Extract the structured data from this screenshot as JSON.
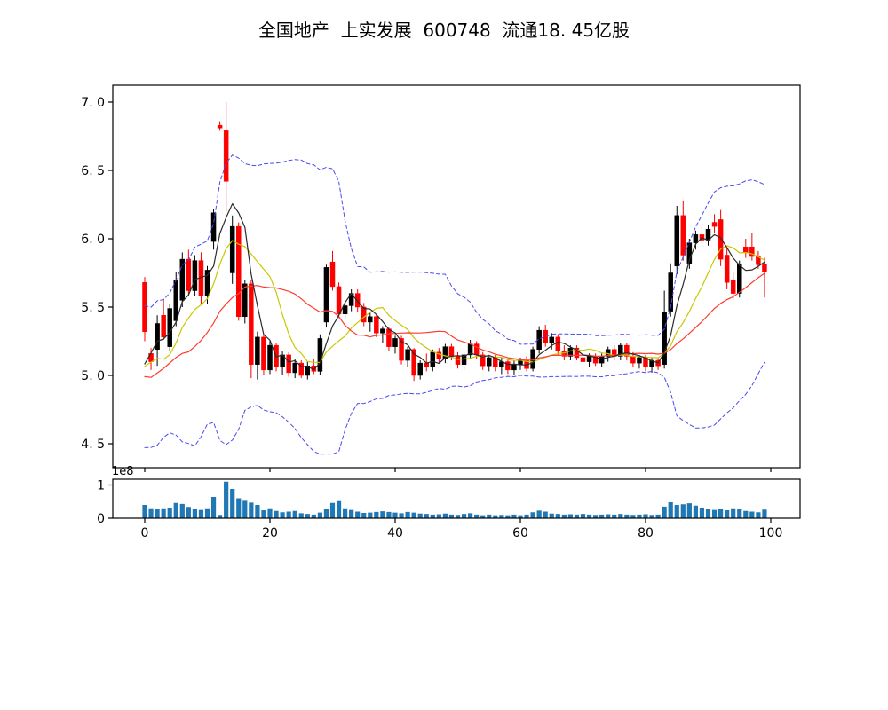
{
  "header": {
    "title": "全国地产  上实发展  600748  流通18. 45亿股"
  },
  "chart_data": {
    "type": "candlestick",
    "title": "全国地产  上实发展  600748  流通18. 45亿股",
    "xlabel": "",
    "ylabel": "",
    "legend": "none",
    "grid": false,
    "x_range_sessions": [
      0,
      99
    ],
    "price_axis": {
      "tick_values": [
        7.0,
        6.5,
        6.0,
        5.5,
        5.0,
        4.5
      ],
      "tick_labels": [
        "7. 0",
        "6. 5",
        "6. 0",
        "5. 5",
        "5. 0",
        "4. 5"
      ]
    },
    "x_axis": {
      "tick_values": [
        0,
        20,
        40,
        60,
        80,
        100
      ],
      "tick_labels": [
        "0",
        "20",
        "40",
        "60",
        "80",
        "100"
      ]
    },
    "volume_axis": {
      "tick_values": [
        1,
        0
      ],
      "tick_labels": [
        "1",
        "0"
      ],
      "offset_label": "1e8"
    },
    "overlays": {
      "ma_fast_period": 5,
      "ma_mid_period": 10,
      "ma_slow_period": 20,
      "bollinger_period": 20,
      "bollinger_k": 2
    },
    "colors": {
      "up": "#000000",
      "down": "#fe0000",
      "ma_fast": "#2b2b2b",
      "ma_mid": "#c8c800",
      "ma_slow": "#ff3b30",
      "bollinger": "#4a4af0",
      "volume": "#1f77b4",
      "axis": "#000000"
    },
    "candles_ohlc": [
      [
        5.68,
        5.72,
        5.25,
        5.32
      ],
      [
        5.16,
        5.2,
        5.04,
        5.1
      ],
      [
        5.19,
        5.44,
        5.07,
        5.38
      ],
      [
        5.44,
        5.56,
        5.26,
        5.28
      ],
      [
        5.21,
        5.52,
        5.18,
        5.49
      ],
      [
        5.4,
        5.76,
        5.36,
        5.7
      ],
      [
        5.55,
        5.9,
        5.5,
        5.85
      ],
      [
        5.85,
        5.92,
        5.58,
        5.62
      ],
      [
        5.62,
        5.88,
        5.58,
        5.84
      ],
      [
        5.84,
        5.9,
        5.52,
        5.58
      ],
      [
        5.58,
        5.8,
        5.52,
        5.77
      ],
      [
        5.98,
        6.22,
        5.92,
        6.19
      ],
      [
        6.83,
        6.86,
        6.79,
        6.81
      ],
      [
        6.79,
        7.0,
        6.2,
        6.42
      ],
      [
        5.75,
        6.17,
        5.67,
        6.09
      ],
      [
        6.09,
        6.12,
        5.4,
        5.43
      ],
      [
        5.43,
        5.7,
        5.38,
        5.67
      ],
      [
        5.67,
        5.7,
        4.98,
        5.08
      ],
      [
        5.08,
        5.32,
        4.97,
        5.28
      ],
      [
        5.28,
        5.3,
        5.0,
        5.04
      ],
      [
        5.04,
        5.26,
        5.01,
        5.22
      ],
      [
        5.22,
        5.24,
        5.03,
        5.06
      ],
      [
        5.06,
        5.18,
        5.0,
        5.15
      ],
      [
        5.15,
        5.17,
        4.99,
        5.02
      ],
      [
        5.02,
        5.12,
        4.98,
        5.09
      ],
      [
        5.09,
        5.11,
        4.98,
        5.0
      ],
      [
        5.0,
        5.1,
        4.97,
        5.07
      ],
      [
        5.07,
        5.12,
        5.01,
        5.03
      ],
      [
        5.03,
        5.3,
        5.0,
        5.27
      ],
      [
        5.39,
        5.81,
        5.35,
        5.79
      ],
      [
        5.83,
        5.91,
        5.62,
        5.65
      ],
      [
        5.65,
        5.68,
        5.42,
        5.45
      ],
      [
        5.45,
        5.54,
        5.42,
        5.51
      ],
      [
        5.51,
        5.63,
        5.47,
        5.6
      ],
      [
        5.6,
        5.63,
        5.46,
        5.5
      ],
      [
        5.5,
        5.53,
        5.36,
        5.39
      ],
      [
        5.39,
        5.46,
        5.32,
        5.43
      ],
      [
        5.43,
        5.45,
        5.28,
        5.31
      ],
      [
        5.31,
        5.36,
        5.24,
        5.34
      ],
      [
        5.34,
        5.35,
        5.18,
        5.21
      ],
      [
        5.21,
        5.29,
        5.16,
        5.27
      ],
      [
        5.27,
        5.29,
        5.08,
        5.11
      ],
      [
        5.11,
        5.21,
        5.06,
        5.19
      ],
      [
        5.19,
        5.2,
        4.96,
        5.0
      ],
      [
        5.0,
        5.11,
        4.97,
        5.09
      ],
      [
        5.09,
        5.16,
        5.03,
        5.06
      ],
      [
        5.06,
        5.19,
        5.03,
        5.17
      ],
      [
        5.17,
        5.2,
        5.09,
        5.12
      ],
      [
        5.12,
        5.23,
        5.09,
        5.21
      ],
      [
        5.21,
        5.23,
        5.11,
        5.14
      ],
      [
        5.14,
        5.17,
        5.05,
        5.08
      ],
      [
        5.08,
        5.17,
        5.04,
        5.15
      ],
      [
        5.15,
        5.26,
        5.12,
        5.23
      ],
      [
        5.23,
        5.25,
        5.12,
        5.15
      ],
      [
        5.15,
        5.17,
        5.04,
        5.07
      ],
      [
        5.07,
        5.15,
        5.03,
        5.13
      ],
      [
        5.13,
        5.15,
        5.03,
        5.06
      ],
      [
        5.06,
        5.13,
        5.01,
        5.1
      ],
      [
        5.1,
        5.12,
        5.01,
        5.04
      ],
      [
        5.04,
        5.11,
        5.0,
        5.08
      ],
      [
        5.08,
        5.13,
        5.04,
        5.11
      ],
      [
        5.11,
        5.14,
        5.03,
        5.05
      ],
      [
        5.05,
        5.21,
        5.03,
        5.19
      ],
      [
        5.19,
        5.36,
        5.16,
        5.33
      ],
      [
        5.33,
        5.37,
        5.21,
        5.24
      ],
      [
        5.24,
        5.31,
        5.19,
        5.28
      ],
      [
        5.28,
        5.3,
        5.15,
        5.18
      ],
      [
        5.18,
        5.22,
        5.11,
        5.14
      ],
      [
        5.14,
        5.22,
        5.11,
        5.2
      ],
      [
        5.2,
        5.22,
        5.11,
        5.13
      ],
      [
        5.13,
        5.17,
        5.07,
        5.1
      ],
      [
        5.1,
        5.16,
        5.06,
        5.14
      ],
      [
        5.14,
        5.16,
        5.07,
        5.09
      ],
      [
        5.09,
        5.16,
        5.06,
        5.14
      ],
      [
        5.14,
        5.21,
        5.1,
        5.19
      ],
      [
        5.19,
        5.22,
        5.11,
        5.14
      ],
      [
        5.14,
        5.24,
        5.11,
        5.22
      ],
      [
        5.22,
        5.24,
        5.11,
        5.14
      ],
      [
        5.14,
        5.17,
        5.06,
        5.09
      ],
      [
        5.09,
        5.15,
        5.05,
        5.13
      ],
      [
        5.13,
        5.15,
        5.03,
        5.06
      ],
      [
        5.06,
        5.13,
        5.02,
        5.11
      ],
      [
        5.11,
        5.13,
        5.04,
        5.07
      ],
      [
        5.08,
        5.62,
        5.05,
        5.46
      ],
      [
        5.47,
        5.82,
        5.43,
        5.75
      ],
      [
        5.8,
        6.24,
        5.74,
        6.17
      ],
      [
        6.17,
        6.28,
        5.84,
        5.88
      ],
      [
        5.82,
        6.0,
        5.78,
        5.97
      ],
      [
        5.97,
        6.06,
        5.92,
        6.03
      ],
      [
        6.03,
        6.09,
        5.96,
        5.99
      ],
      [
        5.99,
        6.1,
        5.95,
        6.07
      ],
      [
        6.12,
        6.18,
        6.04,
        6.09
      ],
      [
        6.14,
        6.21,
        5.8,
        5.85
      ],
      [
        5.88,
        5.93,
        5.63,
        5.68
      ],
      [
        5.7,
        5.75,
        5.56,
        5.6
      ],
      [
        5.6,
        5.84,
        5.57,
        5.81
      ],
      [
        5.94,
        6.0,
        5.86,
        5.9
      ],
      [
        5.94,
        6.04,
        5.84,
        5.87
      ],
      [
        5.87,
        5.91,
        5.78,
        5.81
      ],
      [
        5.81,
        5.86,
        5.57,
        5.76
      ]
    ],
    "volume_1e8": [
      0.4,
      0.3,
      0.28,
      0.3,
      0.32,
      0.46,
      0.43,
      0.34,
      0.27,
      0.25,
      0.3,
      0.64,
      0.1,
      1.1,
      0.88,
      0.6,
      0.55,
      0.47,
      0.4,
      0.24,
      0.3,
      0.22,
      0.18,
      0.2,
      0.22,
      0.15,
      0.13,
      0.11,
      0.17,
      0.28,
      0.46,
      0.54,
      0.3,
      0.25,
      0.2,
      0.16,
      0.17,
      0.19,
      0.21,
      0.19,
      0.17,
      0.15,
      0.19,
      0.17,
      0.14,
      0.13,
      0.11,
      0.12,
      0.14,
      0.11,
      0.1,
      0.13,
      0.15,
      0.11,
      0.09,
      0.11,
      0.09,
      0.1,
      0.09,
      0.11,
      0.09,
      0.11,
      0.18,
      0.23,
      0.2,
      0.14,
      0.13,
      0.11,
      0.12,
      0.11,
      0.13,
      0.11,
      0.1,
      0.11,
      0.12,
      0.11,
      0.13,
      0.11,
      0.1,
      0.11,
      0.12,
      0.1,
      0.11,
      0.35,
      0.48,
      0.4,
      0.42,
      0.45,
      0.38,
      0.32,
      0.28,
      0.25,
      0.28,
      0.24,
      0.3,
      0.28,
      0.22,
      0.2,
      0.18,
      0.26
    ],
    "prehistory_closes_estimated": [
      5.35,
      5.2,
      4.75,
      4.6,
      4.7,
      4.9,
      5.25,
      5.4,
      5.05,
      4.7,
      4.6,
      4.8,
      5.1,
      5.35,
      5.15,
      4.85,
      4.7,
      4.95,
      5.2,
      5.25
    ]
  }
}
